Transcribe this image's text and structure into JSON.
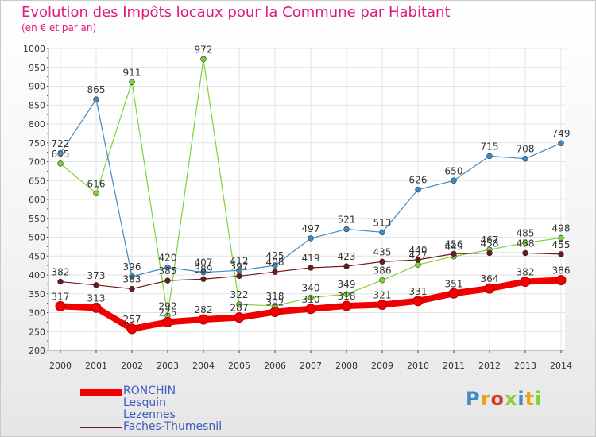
{
  "title": "Evolution des Impôts locaux pour la Commune par Habitant",
  "subtitle": "(en € et par an)",
  "logo_text": "Proxiti",
  "chart_data": {
    "type": "line",
    "x": [
      2000,
      2001,
      2002,
      2003,
      2004,
      2005,
      2006,
      2007,
      2008,
      2009,
      2010,
      2011,
      2012,
      2013,
      2014
    ],
    "ylim": [
      200,
      1000
    ],
    "yticks": [
      200,
      250,
      300,
      350,
      400,
      450,
      500,
      550,
      600,
      650,
      700,
      750,
      800,
      850,
      900,
      950,
      1000
    ],
    "legend_position": "bottom-left",
    "series": [
      {
        "name": "Lezennes",
        "color": "#7dd336",
        "values": [
          695,
          616,
          911,
          292,
          972,
          322,
          318,
          340,
          349,
          386,
          427,
          449,
          467,
          485,
          498
        ],
        "labels": [
          "695",
          "616",
          "911",
          "292",
          "972",
          "322",
          "318",
          "340",
          "349",
          "386",
          "427",
          "449",
          "467",
          "485",
          "498"
        ]
      },
      {
        "name": "Lesquin",
        "color": "#3f8bc4",
        "values": [
          722,
          865,
          396,
          420,
          407,
          412,
          425,
          497,
          521,
          513,
          626,
          650,
          715,
          708,
          749
        ],
        "labels": [
          "722",
          "865",
          "396",
          "420",
          "407",
          "412",
          "425",
          "497",
          "521",
          "513",
          "626",
          "650",
          "715",
          "708",
          "749"
        ]
      },
      {
        "name": "Faches-Thumesnil",
        "color": "#6b1a1a",
        "values": [
          382,
          373,
          363,
          385,
          389,
          397,
          408,
          419,
          423,
          435,
          440,
          456,
          458,
          458,
          455
        ],
        "labels": [
          "382",
          "373",
          "363",
          "385",
          "389",
          "397",
          "408",
          "419",
          "423",
          "435",
          "440",
          "456",
          "458",
          "458",
          "455"
        ]
      },
      {
        "name": "RONCHIN",
        "color": "#f00000",
        "values": [
          317,
          313,
          257,
          275,
          282,
          287,
          302,
          310,
          318,
          321,
          331,
          351,
          364,
          382,
          386
        ],
        "labels": [
          "317",
          "313",
          "257",
          "275",
          "282",
          "287",
          "302",
          "310",
          "318",
          "321",
          "331",
          "351",
          "364",
          "382",
          "386"
        ]
      }
    ]
  },
  "legend": [
    {
      "label": "RONCHIN",
      "color": "#f00000"
    },
    {
      "label": "Lesquin",
      "color": "#3f8bc4"
    },
    {
      "label": "Lezennes",
      "color": "#7dd336"
    },
    {
      "label": "Faches-Thumesnil",
      "color": "#6b1a1a"
    }
  ]
}
